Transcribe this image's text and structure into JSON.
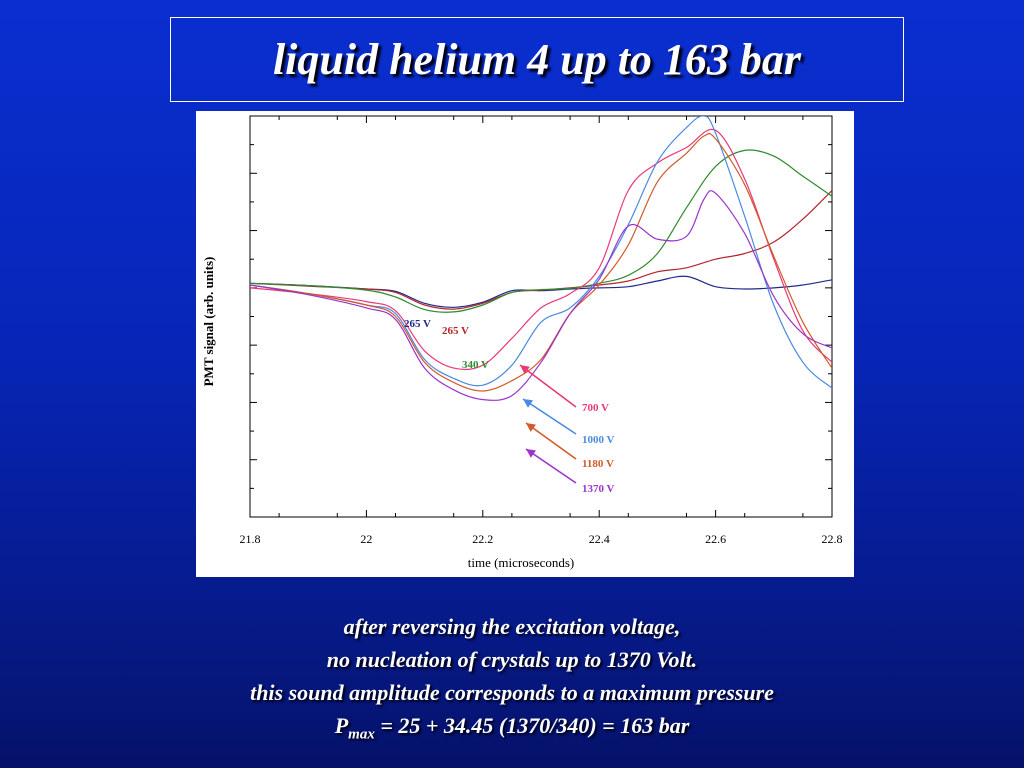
{
  "slide": {
    "title": "liquid helium 4 up to 163 bar",
    "caption": {
      "line1": "after reversing the excitation voltage,",
      "line2": "no nucleation of crystals up to 1370 Volt.",
      "line3": "this sound amplitude corresponds to a maximum pressure",
      "line4_main": "P",
      "line4_sub": "max",
      "line4_rest": " = 25 + 34.45 (1370/340) = 163 bar"
    }
  },
  "chart_data": {
    "type": "line",
    "xlabel": "time  (microseconds)",
    "ylabel": "PMT signal  (arb. units)",
    "xlim": [
      21.8,
      22.8
    ],
    "ylim": [
      -4,
      3
    ],
    "x_ticks": [
      "21.8",
      "22",
      "22.2",
      "22.4",
      "22.6",
      "22.8"
    ],
    "series": [
      {
        "name": "265 V",
        "color": "#1e2a8c",
        "points": [
          [
            21.8,
            0.08
          ],
          [
            21.9,
            0.04
          ],
          [
            22.0,
            -0.02
          ],
          [
            22.05,
            -0.06
          ],
          [
            22.1,
            -0.27
          ],
          [
            22.15,
            -0.34
          ],
          [
            22.2,
            -0.25
          ],
          [
            22.25,
            -0.05
          ],
          [
            22.3,
            -0.05
          ],
          [
            22.35,
            -0.02
          ],
          [
            22.4,
            0.0
          ],
          [
            22.45,
            0.02
          ],
          [
            22.5,
            0.12
          ],
          [
            22.55,
            0.2
          ],
          [
            22.6,
            0.02
          ],
          [
            22.65,
            -0.02
          ],
          [
            22.7,
            -0.0
          ],
          [
            22.75,
            0.05
          ],
          [
            22.8,
            0.14
          ]
        ]
      },
      {
        "name": "265 V",
        "color": "#b3262d",
        "points": [
          [
            21.8,
            0.08
          ],
          [
            21.9,
            0.03
          ],
          [
            22.0,
            -0.02
          ],
          [
            22.05,
            -0.08
          ],
          [
            22.1,
            -0.3
          ],
          [
            22.15,
            -0.37
          ],
          [
            22.2,
            -0.27
          ],
          [
            22.25,
            -0.08
          ],
          [
            22.3,
            -0.04
          ],
          [
            22.35,
            0.0
          ],
          [
            22.4,
            0.05
          ],
          [
            22.45,
            0.12
          ],
          [
            22.5,
            0.28
          ],
          [
            22.55,
            0.35
          ],
          [
            22.6,
            0.5
          ],
          [
            22.65,
            0.6
          ],
          [
            22.7,
            0.8
          ],
          [
            22.75,
            1.2
          ],
          [
            22.8,
            1.7
          ]
        ]
      },
      {
        "name": "340 V",
        "color": "#2e8b2e",
        "points": [
          [
            21.8,
            0.08
          ],
          [
            21.9,
            0.04
          ],
          [
            22.0,
            -0.04
          ],
          [
            22.05,
            -0.16
          ],
          [
            22.1,
            -0.38
          ],
          [
            22.15,
            -0.42
          ],
          [
            22.2,
            -0.3
          ],
          [
            22.25,
            -0.08
          ],
          [
            22.3,
            -0.03
          ],
          [
            22.35,
            -0.01
          ],
          [
            22.4,
            0.08
          ],
          [
            22.45,
            0.22
          ],
          [
            22.5,
            0.6
          ],
          [
            22.55,
            1.4
          ],
          [
            22.6,
            2.12
          ],
          [
            22.65,
            2.4
          ],
          [
            22.7,
            2.3
          ],
          [
            22.75,
            1.95
          ],
          [
            22.8,
            1.6
          ]
        ]
      },
      {
        "name": "700 V",
        "color": "#e83a78",
        "points": [
          [
            21.8,
            0.0
          ],
          [
            21.9,
            -0.1
          ],
          [
            22.0,
            -0.24
          ],
          [
            22.05,
            -0.4
          ],
          [
            22.1,
            -1.1
          ],
          [
            22.15,
            -1.4
          ],
          [
            22.2,
            -1.35
          ],
          [
            22.25,
            -0.88
          ],
          [
            22.3,
            -0.35
          ],
          [
            22.35,
            -0.1
          ],
          [
            22.4,
            0.35
          ],
          [
            22.45,
            1.7
          ],
          [
            22.5,
            2.18
          ],
          [
            22.55,
            2.45
          ],
          [
            22.6,
            2.75
          ],
          [
            22.65,
            1.9
          ],
          [
            22.7,
            0.5
          ],
          [
            22.75,
            -0.75
          ],
          [
            22.8,
            -1.3
          ]
        ]
      },
      {
        "name": "1000 V",
        "color": "#4a8ae0",
        "points": [
          [
            21.8,
            0.05
          ],
          [
            21.9,
            -0.1
          ],
          [
            22.0,
            -0.3
          ],
          [
            22.05,
            -0.45
          ],
          [
            22.1,
            -1.25
          ],
          [
            22.15,
            -1.58
          ],
          [
            22.2,
            -1.7
          ],
          [
            22.25,
            -1.35
          ],
          [
            22.3,
            -0.6
          ],
          [
            22.35,
            -0.35
          ],
          [
            22.4,
            0.2
          ],
          [
            22.45,
            1.1
          ],
          [
            22.5,
            2.2
          ],
          [
            22.55,
            2.8
          ],
          [
            22.58,
            3.0
          ],
          [
            22.6,
            2.7
          ],
          [
            22.65,
            1.25
          ],
          [
            22.7,
            -0.3
          ],
          [
            22.75,
            -1.3
          ],
          [
            22.8,
            -1.75
          ]
        ]
      },
      {
        "name": "1180 V",
        "color": "#d25a2a",
        "points": [
          [
            21.8,
            0.05
          ],
          [
            21.9,
            -0.1
          ],
          [
            22.0,
            -0.3
          ],
          [
            22.05,
            -0.5
          ],
          [
            22.1,
            -1.3
          ],
          [
            22.15,
            -1.65
          ],
          [
            22.2,
            -1.8
          ],
          [
            22.25,
            -1.62
          ],
          [
            22.3,
            -1.25
          ],
          [
            22.35,
            -0.45
          ],
          [
            22.4,
            0.05
          ],
          [
            22.45,
            0.75
          ],
          [
            22.5,
            1.85
          ],
          [
            22.55,
            2.35
          ],
          [
            22.58,
            2.65
          ],
          [
            22.6,
            2.6
          ],
          [
            22.65,
            1.8
          ],
          [
            22.7,
            0.55
          ],
          [
            22.75,
            -0.6
          ],
          [
            22.8,
            -1.4
          ]
        ]
      },
      {
        "name": "1370 V",
        "color": "#9a35c8",
        "points": [
          [
            21.8,
            0.05
          ],
          [
            21.9,
            -0.12
          ],
          [
            22.0,
            -0.35
          ],
          [
            22.05,
            -0.55
          ],
          [
            22.1,
            -1.4
          ],
          [
            22.15,
            -1.78
          ],
          [
            22.2,
            -1.95
          ],
          [
            22.25,
            -1.88
          ],
          [
            22.3,
            -1.3
          ],
          [
            22.35,
            -0.45
          ],
          [
            22.4,
            0.15
          ],
          [
            22.45,
            1.08
          ],
          [
            22.5,
            0.85
          ],
          [
            22.55,
            0.9
          ],
          [
            22.58,
            1.55
          ],
          [
            22.6,
            1.65
          ],
          [
            22.65,
            0.95
          ],
          [
            22.7,
            -0.15
          ],
          [
            22.75,
            -0.8
          ],
          [
            22.8,
            -1.05
          ]
        ]
      }
    ],
    "annotations": [
      {
        "text": "265 V",
        "color": "#1e2a8c"
      },
      {
        "text": "265 V",
        "color": "#b3262d"
      },
      {
        "text": "340 V",
        "color": "#2e8b2e"
      },
      {
        "text": "700 V",
        "color": "#e83a78"
      },
      {
        "text": "1000 V",
        "color": "#4a8ae0"
      },
      {
        "text": "1180 V",
        "color": "#d25a2a"
      },
      {
        "text": "1370 V",
        "color": "#9a35c8"
      }
    ]
  }
}
